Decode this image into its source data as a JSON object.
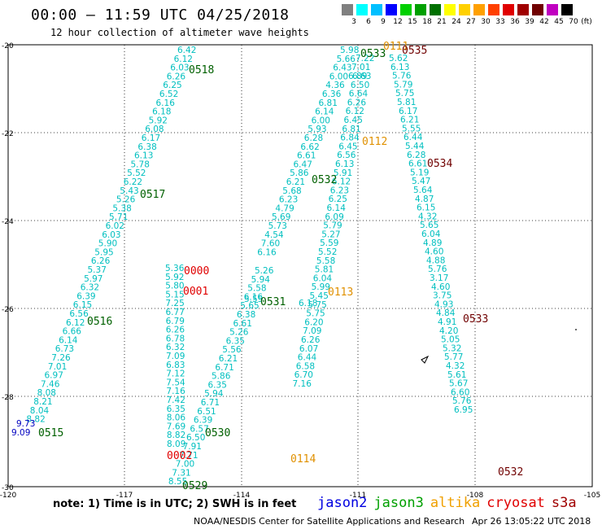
{
  "header": {
    "title": "00:00 – 11:59 UTC 04/25/2018",
    "subtitle": "12 hour collection of altimeter wave heights"
  },
  "colorbar": {
    "unit": "(ft)",
    "bins": [
      {
        "label": "3",
        "color": "#808080"
      },
      {
        "label": "6",
        "color": "#00ffff"
      },
      {
        "label": "9",
        "color": "#00bfff"
      },
      {
        "label": "12",
        "color": "#0000ff"
      },
      {
        "label": "15",
        "color": "#00d000"
      },
      {
        "label": "18",
        "color": "#00a000"
      },
      {
        "label": "21",
        "color": "#007000"
      },
      {
        "label": "24",
        "color": "#ffff00"
      },
      {
        "label": "27",
        "color": "#ffd000"
      },
      {
        "label": "30",
        "color": "#ffa000"
      },
      {
        "label": "33",
        "color": "#ff4000"
      },
      {
        "label": "36",
        "color": "#e00000"
      },
      {
        "label": "39",
        "color": "#a00000"
      },
      {
        "label": "42",
        "color": "#700000"
      },
      {
        "label": "45",
        "color": "#c000c0"
      },
      {
        "label": "70",
        "color": "#000000"
      }
    ]
  },
  "axes": {
    "lon_ticks": [
      "-120",
      "-117",
      "-114",
      "-111",
      "-108",
      "-105"
    ],
    "lat_ticks": [
      "-20",
      "-22",
      "-24",
      "-26",
      "-28",
      "-30"
    ]
  },
  "tracks": [
    {
      "color": "#00bfbf",
      "x0": 218,
      "y0": 65,
      "dx": -4.42,
      "dy": 10.8,
      "values": [
        "6.42",
        "6.12",
        "6.03",
        "6.26",
        "6.25",
        "6.52",
        "6.16",
        "6.18",
        "5.92",
        "6.08",
        "6.17",
        "6.38",
        "6.13",
        "5.78",
        "5.52",
        "6.22",
        "5.43",
        "5.26",
        "5.38",
        "5.71",
        "6.02",
        "6.03",
        "5.90",
        "5.95",
        "6.26",
        "5.37",
        "5.97",
        "6.32",
        "6.39",
        "6.15",
        "6.56",
        "6.12",
        "6.66",
        "6.14",
        "6.73",
        "7.26",
        "7.01",
        "6.97",
        "7.46",
        "8.08",
        "8.21",
        "8.04",
        "8.82"
      ]
    },
    {
      "color": "#00bfbf",
      "x0": 203,
      "y0": 333,
      "dx": 0.1,
      "dy": 10.8,
      "values": [
        "5.36",
        "5.92",
        "5.80",
        "5.15",
        "7.25",
        "6.77",
        "6.79",
        "6.26",
        "6.78",
        "6.32",
        "7.09",
        "6.83",
        "7.12",
        "7.54",
        "7.16",
        "7.42",
        "6.35",
        "8.06",
        "7.69",
        "8.82",
        "8.09"
      ]
    },
    {
      "color": "#00bfbf",
      "x0": 313,
      "y0": 336,
      "dx": -4.42,
      "dy": 10.8,
      "values": [
        "5.26",
        "5.94",
        "5.58",
        "6.16",
        "5.65",
        "6.38",
        "6.61",
        "5.26",
        "6.35",
        "5.56",
        "6.21",
        "6.71",
        "5.86",
        "6.35",
        "5.94",
        "6.71",
        "6.51",
        "6.39",
        "6.57",
        "6.50",
        "7.91",
        "7.71",
        "7.00",
        "7.31",
        "8.55"
      ]
    },
    {
      "color": "#00bfbf",
      "x0": 418,
      "y0": 65,
      "dx": -4.42,
      "dy": 10.8,
      "values": [
        "5.98",
        "5.66",
        "6.43",
        "6.00",
        "4.36",
        "6.36",
        "6.81",
        "6.14",
        "6.00",
        "5.93",
        "6.28",
        "6.62",
        "6.61",
        "6.47",
        "5.86",
        "6.21",
        "5.68",
        "6.23",
        "4.79",
        "5.69",
        "5.73",
        "4.54",
        "7.60",
        "6.16"
      ]
    },
    {
      "color": "#00bfbf",
      "x0": 433,
      "y0": 97,
      "dx": -2.1,
      "dy": 10.8,
      "values": [
        "6.63",
        "6.50",
        "6.64",
        "6.26",
        "6.12",
        "6.45",
        "6.81",
        "6.84",
        "6.45",
        "6.56",
        "6.13",
        "5.91",
        "6.12",
        "6.23",
        "6.25",
        "6.14",
        "6.09",
        "5.79",
        "5.27",
        "5.59",
        "5.52",
        "5.58",
        "5.81",
        "6.04",
        "5.99",
        "5.45",
        "5.75",
        "5.75",
        "6.20",
        "7.09",
        "6.26",
        "6.07",
        "6.44",
        "6.58",
        "6.70",
        "7.16"
      ]
    },
    {
      "color": "#00bfbf",
      "x0": 478,
      "y0": 75,
      "dx": 2.0,
      "dy": 10.8,
      "values": [
        "5.62",
        "6.13",
        "5.76",
        "5.79",
        "5.75",
        "5.81",
        "6.17",
        "6.21",
        "5.55",
        "6.44",
        "5.44",
        "6.28",
        "6.61",
        "5.19",
        "5.47",
        "5.64",
        "4.87",
        "6.15",
        "4.32",
        "5.65",
        "6.04",
        "4.89",
        "4.60",
        "4.88",
        "5.76",
        "3.17",
        "4.60",
        "3.75",
        "4.93",
        "4.84",
        "4.91",
        "4.20",
        "5.05",
        "5.32",
        "5.77",
        "4.32",
        "5.61",
        "5.67",
        "6.60",
        "5.76",
        "6.95"
      ]
    }
  ],
  "misc_points": [
    {
      "label": "9.73",
      "color": "#0000c0",
      "lx": 20,
      "ly": 524
    },
    {
      "label": "9.09",
      "color": "#0000c0",
      "lx": 14,
      "ly": 535
    },
    {
      "label": "6.89",
      "color": "#00bfbf",
      "lx": 428,
      "ly": 97
    },
    {
      "label": "7.01",
      "color": "#00bfbf",
      "lx": 432,
      "ly": 86
    },
    {
      "label": "7.22",
      "color": "#00bfbf",
      "lx": 437,
      "ly": 75
    },
    {
      "label": "6.18",
      "color": "#00bfbf",
      "lx": 367,
      "ly": 376
    },
    {
      "label": "5.55",
      "color": "#00bfbf",
      "lx": 300,
      "ly": 371
    }
  ],
  "segments": [
    {
      "label": "0518",
      "color": "#006000",
      "lx": 232,
      "ly": 90
    },
    {
      "label": "0517",
      "color": "#006000",
      "lx": 172,
      "ly": 243
    },
    {
      "label": "0516",
      "color": "#006000",
      "lx": 107,
      "ly": 399
    },
    {
      "label": "0515",
      "color": "#006000",
      "lx": 47,
      "ly": 536
    },
    {
      "label": "0000",
      "color": "#e00000",
      "lx": 226,
      "ly": 337
    },
    {
      "label": "0001",
      "color": "#e00000",
      "lx": 225,
      "ly": 362
    },
    {
      "label": "0002",
      "color": "#e00000",
      "lx": 205,
      "ly": 564
    },
    {
      "label": "0530",
      "color": "#006000",
      "lx": 252,
      "ly": 536
    },
    {
      "label": "0529",
      "color": "#006000",
      "lx": 224,
      "ly": 601
    },
    {
      "label": "0531",
      "color": "#006000",
      "lx": 320,
      "ly": 375
    },
    {
      "label": "0532",
      "color": "#006000",
      "lx": 383,
      "ly": 225
    },
    {
      "label": "0533",
      "color": "#006000",
      "lx": 443,
      "ly": 70
    },
    {
      "label": "0112",
      "color": "#e09000",
      "lx": 445,
      "ly": 178
    },
    {
      "label": "0113",
      "color": "#e09000",
      "lx": 403,
      "ly": 363
    },
    {
      "label": "0114",
      "color": "#e09000",
      "lx": 357,
      "ly": 568
    },
    {
      "label": "0111",
      "color": "#e09000",
      "lx": 471,
      "ly": 61
    },
    {
      "label": "0535",
      "color": "#700000",
      "lx": 494,
      "ly": 66
    },
    {
      "label": "0534",
      "color": "#700000",
      "lx": 525,
      "ly": 205
    },
    {
      "label": "0533",
      "color": "#700000",
      "lx": 569,
      "ly": 396
    },
    {
      "label": "0532",
      "color": "#700000",
      "lx": 612,
      "ly": 584
    }
  ],
  "footer": {
    "note": "note: 1) Time is in UTC; 2) SWH is in feet",
    "legend": [
      {
        "label": "jason2",
        "color": "#0000e0"
      },
      {
        "label": "jason3",
        "color": "#00a000"
      },
      {
        "label": "altika",
        "color": "#f0a000"
      },
      {
        "label": "cryosat",
        "color": "#e00000"
      },
      {
        "label": "s3a",
        "color": "#a00000"
      }
    ],
    "credit": "NOAA/NESDIS Center for Satellite Applications and Research",
    "timestamp": "Apr 26 13:05:22 UTC 2018"
  }
}
